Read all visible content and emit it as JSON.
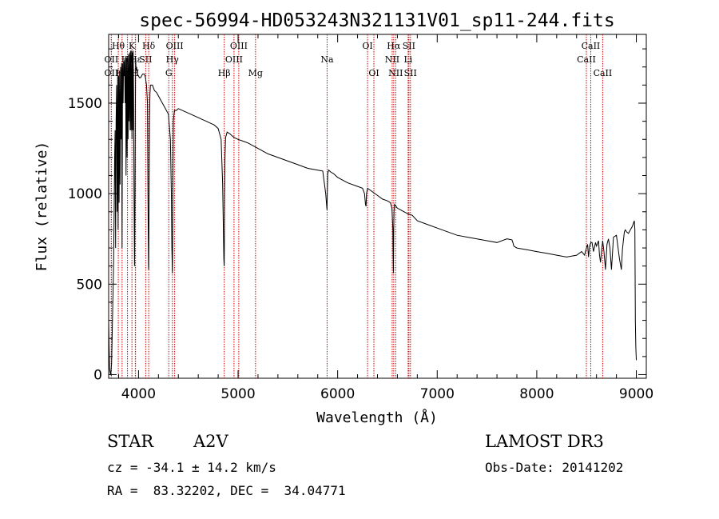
{
  "chart_data": {
    "type": "line",
    "title": "spec-56994-HD053243N321131V01_sp11-244.fits",
    "xlabel": "Wavelength (Å)",
    "ylabel": "Flux (relative)",
    "xlim": [
      3700,
      9100
    ],
    "ylim": [
      -20,
      1880
    ],
    "xticks": [
      4000,
      5000,
      6000,
      7000,
      8000,
      9000
    ],
    "yticks": [
      0,
      500,
      1000,
      1500
    ],
    "grid": false,
    "legend": "none",
    "series": [
      {
        "name": "flux",
        "x": [
          3700,
          3705,
          3710,
          3716,
          3720,
          3730,
          3740,
          3750,
          3755,
          3760,
          3765,
          3770,
          3775,
          3780,
          3785,
          3790,
          3795,
          3800,
          3805,
          3810,
          3815,
          3820,
          3825,
          3830,
          3835,
          3840,
          3845,
          3850,
          3855,
          3860,
          3865,
          3870,
          3875,
          3880,
          3885,
          3890,
          3895,
          3900,
          3905,
          3910,
          3915,
          3920,
          3925,
          3930,
          3934,
          3938,
          3942,
          3946,
          3950,
          3955,
          3960,
          3965,
          3968,
          3971,
          3975,
          3980,
          3990,
          4000,
          4010,
          4020,
          4030,
          4040,
          4050,
          4060,
          4070,
          4080,
          4090,
          4095,
          4100,
          4102,
          4105,
          4110,
          4115,
          4120,
          4140,
          4160,
          4180,
          4200,
          4220,
          4240,
          4260,
          4280,
          4300,
          4320,
          4330,
          4335,
          4340,
          4343,
          4345,
          4350,
          4360,
          4380,
          4400,
          4440,
          4480,
          4520,
          4560,
          4600,
          4640,
          4680,
          4720,
          4760,
          4800,
          4830,
          4845,
          4852,
          4857,
          4860,
          4862,
          4864,
          4868,
          4875,
          4890,
          4920,
          4960,
          5000,
          5050,
          5100,
          5150,
          5200,
          5300,
          5400,
          5500,
          5600,
          5700,
          5800,
          5850,
          5880,
          5893,
          5896,
          5900,
          5910,
          5930,
          5960,
          6000,
          6100,
          6200,
          6250,
          6270,
          6280,
          6285,
          6290,
          6300,
          6350,
          6400,
          6450,
          6500,
          6530,
          6545,
          6555,
          6560,
          6563,
          6566,
          6572,
          6580,
          6600,
          6650,
          6700,
          6750,
          6800,
          6900,
          7000,
          7100,
          7200,
          7300,
          7400,
          7500,
          7600,
          7700,
          7750,
          7760,
          7770,
          7800,
          7900,
          8000,
          8100,
          8200,
          8300,
          8400,
          8450,
          8480,
          8498,
          8510,
          8520,
          8530,
          8542,
          8555,
          8570,
          8590,
          8600,
          8620,
          8630,
          8640,
          8650,
          8662,
          8675,
          8690,
          8705,
          8720,
          8735,
          8750,
          8770,
          8800,
          8830,
          8850,
          8860,
          8870,
          8880,
          8890,
          8900,
          8920,
          8940,
          8960,
          8980,
          8985,
          8990,
          8995,
          9000
        ],
        "values": [
          300,
          150,
          30,
          10,
          0,
          60,
          350,
          620,
          900,
          1200,
          1350,
          700,
          1400,
          1600,
          900,
          1650,
          800,
          1650,
          950,
          1680,
          1050,
          1700,
          1300,
          1720,
          700,
          1720,
          1500,
          1730,
          1650,
          1740,
          1500,
          1760,
          1100,
          1750,
          1200,
          1750,
          1300,
          1770,
          1400,
          1780,
          1350,
          1790,
          1350,
          1790,
          1300,
          1780,
          1350,
          1790,
          1550,
          1000,
          600,
          1000,
          1450,
          1750,
          1680,
          1700,
          1660,
          1650,
          1640,
          1640,
          1650,
          1660,
          1660,
          1660,
          1640,
          1600,
          1500,
          1000,
          600,
          580,
          900,
          1400,
          1550,
          1600,
          1600,
          1570,
          1560,
          1540,
          1520,
          1500,
          1480,
          1460,
          1440,
          1300,
          1000,
          700,
          560,
          700,
          1000,
          1400,
          1460,
          1460,
          1470,
          1460,
          1450,
          1440,
          1430,
          1420,
          1410,
          1400,
          1390,
          1380,
          1360,
          1300,
          1050,
          800,
          640,
          600,
          700,
          1000,
          1200,
          1310,
          1340,
          1330,
          1310,
          1300,
          1290,
          1280,
          1265,
          1250,
          1220,
          1200,
          1180,
          1160,
          1140,
          1130,
          1125,
          1000,
          910,
          1000,
          1110,
          1130,
          1120,
          1110,
          1090,
          1060,
          1040,
          1030,
          1000,
          940,
          930,
          1000,
          1030,
          1010,
          990,
          970,
          960,
          950,
          920,
          800,
          560,
          800,
          900,
          940,
          935,
          920,
          905,
          890,
          880,
          850,
          830,
          810,
          790,
          770,
          760,
          750,
          740,
          730,
          750,
          745,
          730,
          710,
          700,
          690,
          680,
          670,
          660,
          650,
          660,
          680,
          660,
          700,
          720,
          650,
          710,
          730,
          730,
          680,
          730,
          710,
          740,
          660,
          620,
          680,
          740,
          680,
          580,
          720,
          750,
          700,
          580,
          760,
          770,
          640,
          580,
          690,
          740,
          790,
          800,
          790,
          780,
          800,
          820,
          850,
          800,
          300,
          150,
          80
        ]
      }
    ],
    "line_markers": [
      {
        "label": "Hθ",
        "x": 3797,
        "row": 1
      },
      {
        "label": "OII",
        "x": 3727,
        "row": 2
      },
      {
        "label": "OII",
        "x": 3727,
        "row": 3
      },
      {
        "label": "Hη",
        "x": 3835,
        "row": 3
      },
      {
        "label": "Hζ",
        "x": 3889,
        "row": 2
      },
      {
        "label": "K",
        "x": 3934,
        "row": 1
      },
      {
        "label": "Hε",
        "x": 3970,
        "row": 2
      },
      {
        "label": "H",
        "x": 3968,
        "row": 3
      },
      {
        "label": "SII",
        "x": 4072,
        "row": 2
      },
      {
        "label": "Hδ",
        "x": 4102,
        "row": 1
      },
      {
        "label": "OIII",
        "x": 4363,
        "row": 1
      },
      {
        "label": "Hγ",
        "x": 4340,
        "row": 2
      },
      {
        "label": "G",
        "x": 4304,
        "row": 3
      },
      {
        "label": "Hβ",
        "x": 4861,
        "row": 3
      },
      {
        "label": "OIII",
        "x": 4959,
        "row": 2
      },
      {
        "label": "OIII",
        "x": 5007,
        "row": 1
      },
      {
        "label": "Mg",
        "x": 5175,
        "row": 3
      },
      {
        "label": "Na",
        "x": 5894,
        "row": 2
      },
      {
        "label": "OI",
        "x": 6300,
        "row": 1
      },
      {
        "label": "OI",
        "x": 6364,
        "row": 3
      },
      {
        "label": "Hα",
        "x": 6563,
        "row": 1
      },
      {
        "label": "NII",
        "x": 6548,
        "row": 2
      },
      {
        "label": "NII",
        "x": 6583,
        "row": 3
      },
      {
        "label": "SII",
        "x": 6716,
        "row": 1
      },
      {
        "label": "Li",
        "x": 6708,
        "row": 2
      },
      {
        "label": "SII",
        "x": 6731,
        "row": 3
      },
      {
        "label": "CaII",
        "x": 8542,
        "row": 1
      },
      {
        "label": "CaII",
        "x": 8498,
        "row": 2
      },
      {
        "label": "CaII",
        "x": 8662,
        "row": 3
      }
    ]
  },
  "info": {
    "object_class": "STAR",
    "subclass": "A2V",
    "redshift": "cz = -34.1 ± 14.2 km/s",
    "coords": "RA =  83.32202, DEC =  34.04771",
    "survey": "LAMOST DR3",
    "obs_date": "Obs-Date: 20141202"
  },
  "colors": {
    "line": "#000000",
    "marker": "#cc0000",
    "background": "#ffffff"
  }
}
